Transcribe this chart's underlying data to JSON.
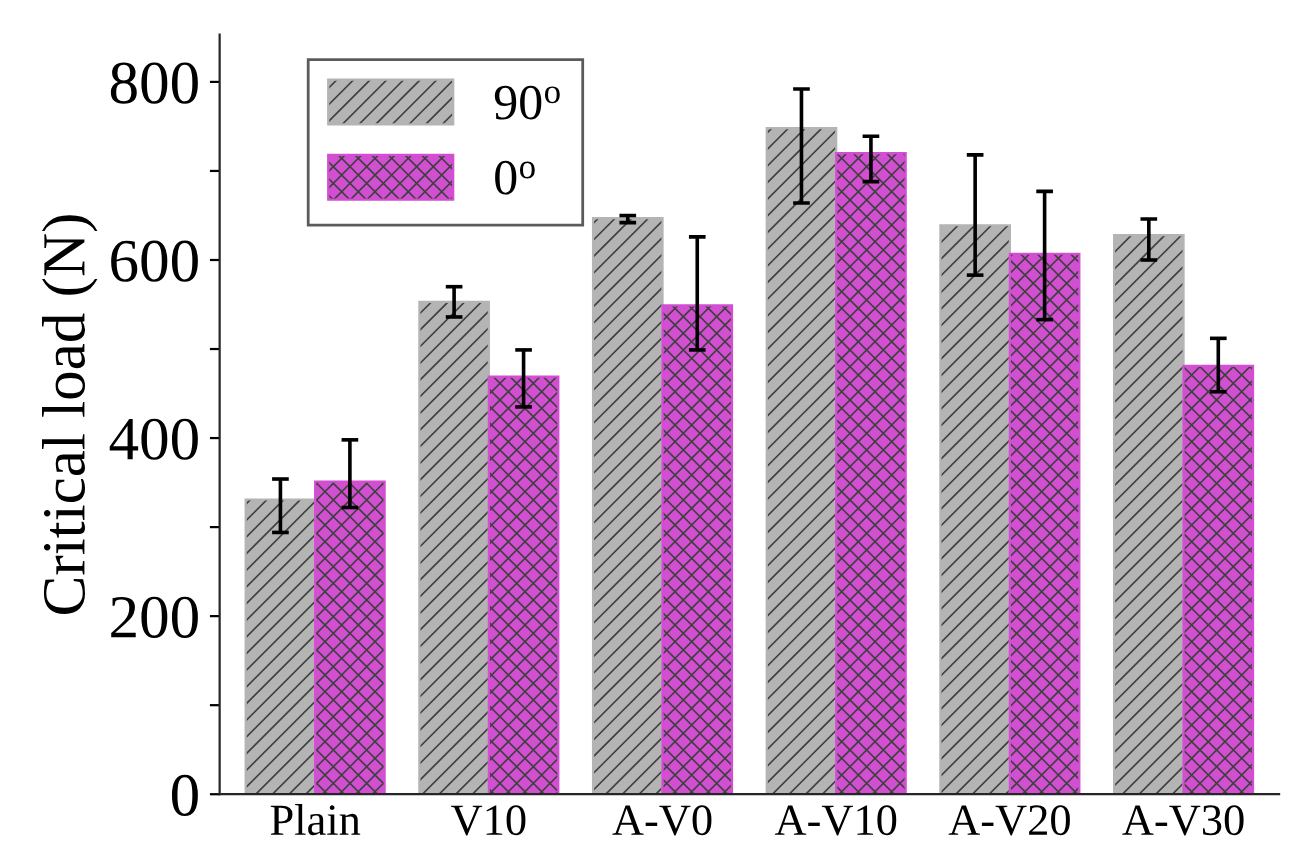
{
  "chart_data": {
    "type": "bar",
    "ylabel": "Critical load (N)",
    "categories": [
      "Plain",
      "V10",
      "A-V0",
      "A-V10",
      "A-V20",
      "A-V30"
    ],
    "series": [
      {
        "name": "90$^{o}$",
        "color": "#b4b4b4",
        "values": [
          331,
          553,
          647,
          748,
          639,
          628
        ],
        "errors": [
          [
            294,
            354
          ],
          [
            536,
            570
          ],
          [
            642,
            650
          ],
          [
            664,
            792
          ],
          [
            583,
            718
          ],
          [
            600,
            646
          ]
        ]
      },
      {
        "name": "0$^{o}$",
        "color": "#d24fd2",
        "values": [
          351,
          469,
          549,
          720,
          607,
          481
        ],
        "errors": [
          [
            322,
            398
          ],
          [
            435,
            499
          ],
          [
            499,
            626
          ],
          [
            688,
            739
          ],
          [
            533,
            677
          ],
          [
            452,
            512
          ]
        ]
      }
    ],
    "ylim": [
      0,
      853
    ],
    "yticks": [
      0,
      {
        "value": 100,
        "label": null
      },
      200,
      {
        "value": 300,
        "label": null
      },
      400,
      {
        "value": 500,
        "label": null
      },
      600,
      {
        "value": 700,
        "label": null
      },
      800
    ],
    "grid": false,
    "legend": "top left"
  }
}
